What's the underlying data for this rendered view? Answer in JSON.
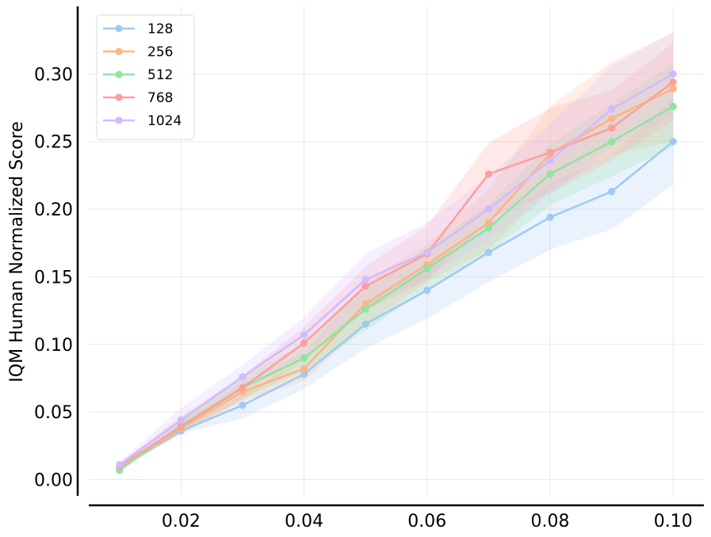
{
  "chart_data": {
    "type": "line",
    "title": "",
    "xlabel": "",
    "ylabel": "IQM Human Normalized Score",
    "xlim": [
      0.005,
      0.105
    ],
    "ylim": [
      -0.012,
      0.35
    ],
    "grid": true,
    "legend_position": "top-left",
    "x": [
      0.01,
      0.02,
      0.03,
      0.04,
      0.05,
      0.06,
      0.07,
      0.08,
      0.09,
      0.1
    ],
    "x_ticks": [
      0.02,
      0.04,
      0.06,
      0.08,
      0.1
    ],
    "x_tick_labels": [
      "0.02",
      "0.04",
      "0.06",
      "0.08",
      "0.10"
    ],
    "y_ticks": [
      0.0,
      0.05,
      0.1,
      0.15,
      0.2,
      0.25,
      0.3
    ],
    "y_tick_labels": [
      "0.00",
      "0.05",
      "0.10",
      "0.15",
      "0.20",
      "0.25",
      "0.30"
    ],
    "series": [
      {
        "name": "128",
        "color": "#a1c9f4",
        "values": [
          0.009,
          0.036,
          0.055,
          0.078,
          0.115,
          0.14,
          0.168,
          0.194,
          0.213,
          0.25
        ],
        "lower": [
          0.008,
          0.034,
          0.045,
          0.067,
          0.097,
          0.119,
          0.146,
          0.17,
          0.185,
          0.218
        ],
        "upper": [
          0.011,
          0.039,
          0.063,
          0.089,
          0.131,
          0.16,
          0.189,
          0.219,
          0.24,
          0.282
        ]
      },
      {
        "name": "256",
        "color": "#ffb482",
        "values": [
          0.008,
          0.038,
          0.065,
          0.082,
          0.13,
          0.159,
          0.19,
          0.241,
          0.267,
          0.289
        ],
        "lower": [
          0.007,
          0.034,
          0.058,
          0.073,
          0.114,
          0.146,
          0.17,
          0.215,
          0.24,
          0.25
        ],
        "upper": [
          0.009,
          0.043,
          0.072,
          0.094,
          0.147,
          0.174,
          0.215,
          0.276,
          0.309,
          0.33
        ]
      },
      {
        "name": "512",
        "color": "#8de5a1",
        "values": [
          0.007,
          0.04,
          0.068,
          0.09,
          0.126,
          0.156,
          0.186,
          0.226,
          0.25,
          0.276
        ],
        "lower": [
          0.006,
          0.036,
          0.06,
          0.08,
          0.11,
          0.141,
          0.167,
          0.203,
          0.224,
          0.246
        ],
        "upper": [
          0.008,
          0.045,
          0.076,
          0.101,
          0.141,
          0.171,
          0.204,
          0.248,
          0.278,
          0.308
        ]
      },
      {
        "name": "768",
        "color": "#ff9f9b",
        "values": [
          0.01,
          0.039,
          0.068,
          0.101,
          0.143,
          0.167,
          0.226,
          0.242,
          0.26,
          0.294
        ],
        "lower": [
          0.009,
          0.034,
          0.059,
          0.088,
          0.125,
          0.147,
          0.192,
          0.212,
          0.236,
          0.266
        ],
        "upper": [
          0.012,
          0.047,
          0.077,
          0.113,
          0.158,
          0.188,
          0.249,
          0.275,
          0.288,
          0.323
        ]
      },
      {
        "name": "1024",
        "color": "#d0bbff",
        "values": [
          0.011,
          0.044,
          0.076,
          0.107,
          0.148,
          0.168,
          0.2,
          0.236,
          0.274,
          0.3
        ],
        "lower": [
          0.009,
          0.039,
          0.066,
          0.092,
          0.128,
          0.149,
          0.178,
          0.21,
          0.246,
          0.27
        ],
        "upper": [
          0.013,
          0.053,
          0.085,
          0.12,
          0.167,
          0.19,
          0.225,
          0.263,
          0.306,
          0.331
        ]
      }
    ]
  }
}
